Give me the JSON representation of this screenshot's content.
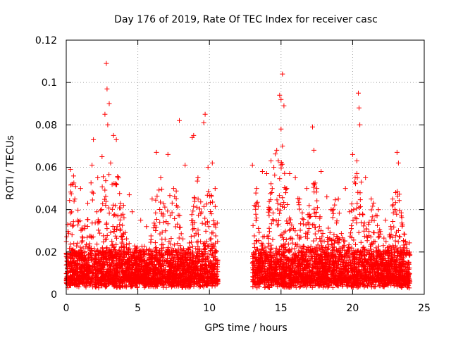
{
  "chart_data": {
    "type": "scatter",
    "title": "Day 176 of 2019, Rate Of TEC Index for receiver casc",
    "xlabel": "GPS time / hours",
    "ylabel": "ROTI / TECUs",
    "xlim": [
      0,
      25
    ],
    "ylim": [
      0,
      0.12
    ],
    "x_ticks": [
      0,
      5,
      10,
      15,
      20,
      25
    ],
    "x_tick_labels": [
      "0",
      "5",
      "10",
      "15",
      "20",
      "25"
    ],
    "y_ticks": [
      0,
      0.02,
      0.04,
      0.06,
      0.08,
      0.1,
      0.12
    ],
    "y_tick_labels": [
      "0",
      "0.02",
      "0.04",
      "0.06",
      "0.08",
      "0.1",
      "0.12"
    ],
    "grid": true,
    "marker": "+",
    "color": "#ff0000",
    "data_gap_hours": [
      10.6,
      13.0
    ],
    "series": [
      {
        "name": "ROTI",
        "points": [
          [
            0.3,
            0.059
          ],
          [
            0.4,
            0.052
          ],
          [
            0.6,
            0.045
          ],
          [
            0.8,
            0.035
          ],
          [
            1.0,
            0.05
          ],
          [
            1.5,
            0.043
          ],
          [
            1.8,
            0.061
          ],
          [
            1.9,
            0.073
          ],
          [
            2.2,
            0.055
          ],
          [
            2.5,
            0.065
          ],
          [
            2.7,
            0.085
          ],
          [
            2.8,
            0.109
          ],
          [
            2.85,
            0.097
          ],
          [
            2.9,
            0.08
          ],
          [
            3.0,
            0.09
          ],
          [
            3.1,
            0.062
          ],
          [
            3.3,
            0.075
          ],
          [
            3.5,
            0.073
          ],
          [
            3.6,
            0.055
          ],
          [
            4.0,
            0.042
          ],
          [
            4.4,
            0.047
          ],
          [
            4.6,
            0.039
          ],
          [
            5.2,
            0.035
          ],
          [
            5.6,
            0.032
          ],
          [
            6.0,
            0.045
          ],
          [
            6.3,
            0.067
          ],
          [
            6.6,
            0.055
          ],
          [
            7.1,
            0.066
          ],
          [
            7.5,
            0.05
          ],
          [
            7.9,
            0.082
          ],
          [
            8.3,
            0.061
          ],
          [
            8.8,
            0.074
          ],
          [
            8.9,
            0.075
          ],
          [
            9.2,
            0.055
          ],
          [
            9.6,
            0.081
          ],
          [
            9.7,
            0.085
          ],
          [
            9.9,
            0.06
          ],
          [
            10.2,
            0.062
          ],
          [
            10.4,
            0.05
          ],
          [
            13.0,
            0.061
          ],
          [
            13.3,
            0.05
          ],
          [
            13.7,
            0.058
          ],
          [
            14.0,
            0.057
          ],
          [
            14.3,
            0.063
          ],
          [
            14.5,
            0.06
          ],
          [
            14.7,
            0.068
          ],
          [
            14.9,
            0.094
          ],
          [
            15.0,
            0.092
          ],
          [
            15.1,
            0.104
          ],
          [
            15.2,
            0.089
          ],
          [
            15.0,
            0.078
          ],
          [
            15.1,
            0.07
          ],
          [
            15.4,
            0.05
          ],
          [
            15.6,
            0.057
          ],
          [
            16.0,
            0.055
          ],
          [
            16.3,
            0.045
          ],
          [
            16.8,
            0.05
          ],
          [
            17.2,
            0.079
          ],
          [
            17.3,
            0.068
          ],
          [
            17.5,
            0.05
          ],
          [
            17.8,
            0.058
          ],
          [
            18.2,
            0.046
          ],
          [
            18.5,
            0.04
          ],
          [
            19.0,
            0.045
          ],
          [
            19.5,
            0.05
          ],
          [
            19.8,
            0.039
          ],
          [
            20.0,
            0.066
          ],
          [
            20.3,
            0.063
          ],
          [
            20.4,
            0.095
          ],
          [
            20.45,
            0.088
          ],
          [
            20.5,
            0.08
          ],
          [
            20.6,
            0.053
          ],
          [
            20.9,
            0.055
          ],
          [
            21.3,
            0.045
          ],
          [
            21.8,
            0.04
          ],
          [
            22.3,
            0.035
          ],
          [
            22.8,
            0.045
          ],
          [
            23.1,
            0.067
          ],
          [
            23.2,
            0.062
          ],
          [
            23.4,
            0.037
          ],
          [
            23.7,
            0.025
          ]
        ],
        "generated_background": {
          "count": 5500,
          "x_ranges": [
            [
              0.0,
              10.6
            ],
            [
              13.0,
              24.0
            ]
          ],
          "typical_range": [
            0.003,
            0.045
          ],
          "seed": 176
        }
      }
    ]
  }
}
